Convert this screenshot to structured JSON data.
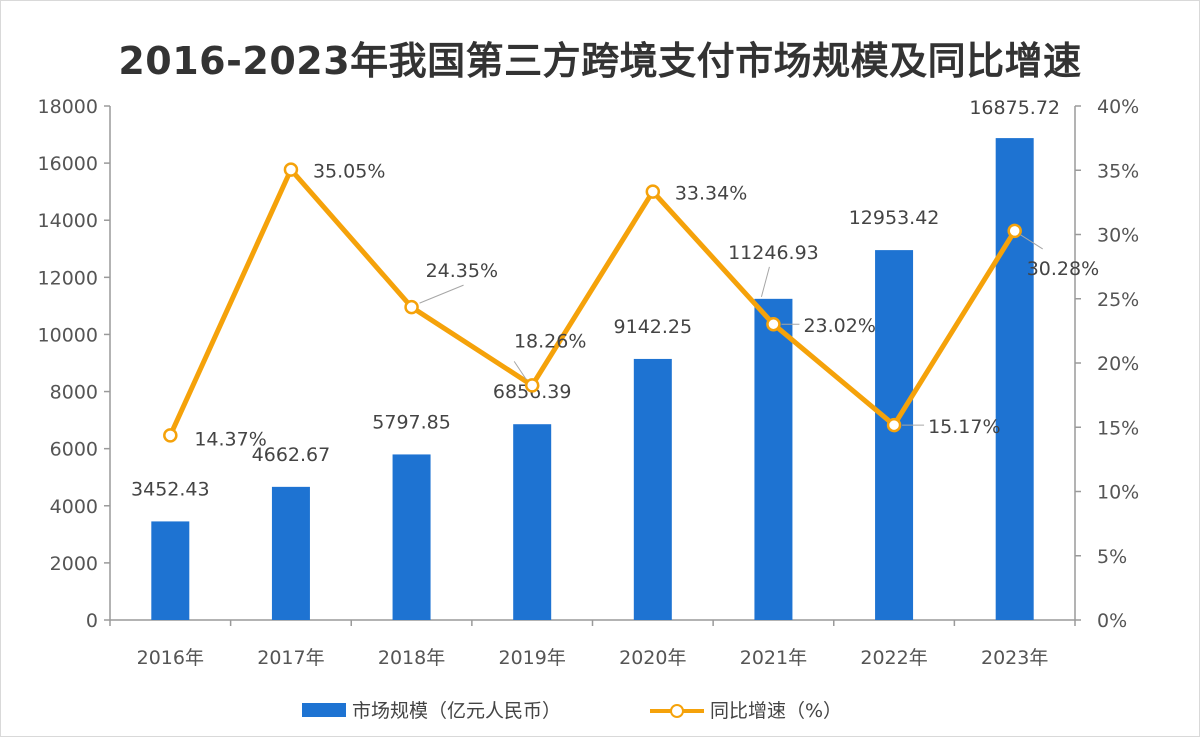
{
  "title": "2016-2023年我国第三方跨境支付市场规模及同比增速",
  "chart_data": {
    "type": "bar",
    "categories": [
      "2016年",
      "2017年",
      "2018年",
      "2019年",
      "2020年",
      "2021年",
      "2022年",
      "2023年"
    ],
    "series": [
      {
        "name": "市场规模（亿元人民币）",
        "type": "bar",
        "axis": "left",
        "color": "#1e73d2",
        "values": [
          3452.43,
          4662.67,
          5797.85,
          6856.39,
          9142.25,
          11246.93,
          12953.42,
          16875.72
        ],
        "labels": [
          "3452.43",
          "4662.67",
          "5797.85",
          "6856.39",
          "9142.25",
          "11246.93",
          "12953.42",
          "16875.72"
        ]
      },
      {
        "name": "同比增速（%）",
        "type": "line",
        "axis": "right",
        "color": "#f5a20a",
        "values": [
          14.37,
          35.05,
          24.35,
          18.26,
          33.34,
          23.02,
          15.17,
          30.28
        ],
        "labels": [
          "14.37%",
          "35.05%",
          "24.35%",
          "18.26%",
          "33.34%",
          "23.02%",
          "15.17%",
          "30.28%"
        ]
      }
    ],
    "y_left": {
      "ylim": [
        0,
        18000
      ],
      "ticks": [
        "0",
        "2000",
        "4000",
        "6000",
        "8000",
        "10000",
        "12000",
        "14000",
        "16000",
        "18000"
      ]
    },
    "y_right": {
      "ylim": [
        0,
        40
      ],
      "ticks": [
        "0%",
        "5%",
        "10%",
        "15%",
        "20%",
        "25%",
        "30%",
        "35%",
        "40%"
      ]
    },
    "grid": false,
    "legend": "bottom"
  }
}
